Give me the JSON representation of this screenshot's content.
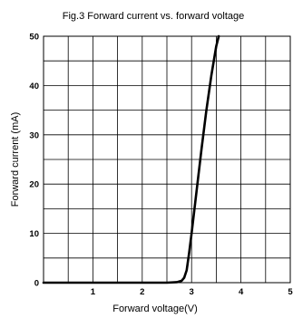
{
  "chart_data": {
    "type": "line",
    "title": "Fig.3 Forward current vs. forward voltage",
    "xlabel": "Forward voltage(V)",
    "ylabel": "Forward current (mA)",
    "xlim": [
      0,
      5
    ],
    "ylim": [
      0,
      50
    ],
    "x_ticks": [
      1,
      2,
      3,
      4,
      5
    ],
    "y_ticks": [
      0,
      10,
      20,
      30,
      40,
      50
    ],
    "x_tick_labels": [
      "1",
      "2",
      "3",
      "4",
      "5"
    ],
    "y_tick_labels": [
      "0",
      "10",
      "20",
      "30",
      "40",
      "50"
    ],
    "grid": true,
    "grid_step_x": 0.5,
    "grid_step_y": 5,
    "line_color": "#000000",
    "series": [
      {
        "x": [
          0,
          1.0,
          2.0,
          2.5,
          2.7,
          2.8,
          2.85,
          2.9,
          2.95,
          3.0,
          3.1,
          3.2,
          3.3,
          3.4,
          3.5,
          3.55
        ],
        "y": [
          0,
          0,
          0,
          0,
          0.1,
          0.4,
          1.0,
          2.5,
          6.0,
          10.0,
          18.5,
          27.0,
          35.0,
          42.0,
          48.0,
          50.0
        ]
      }
    ]
  }
}
